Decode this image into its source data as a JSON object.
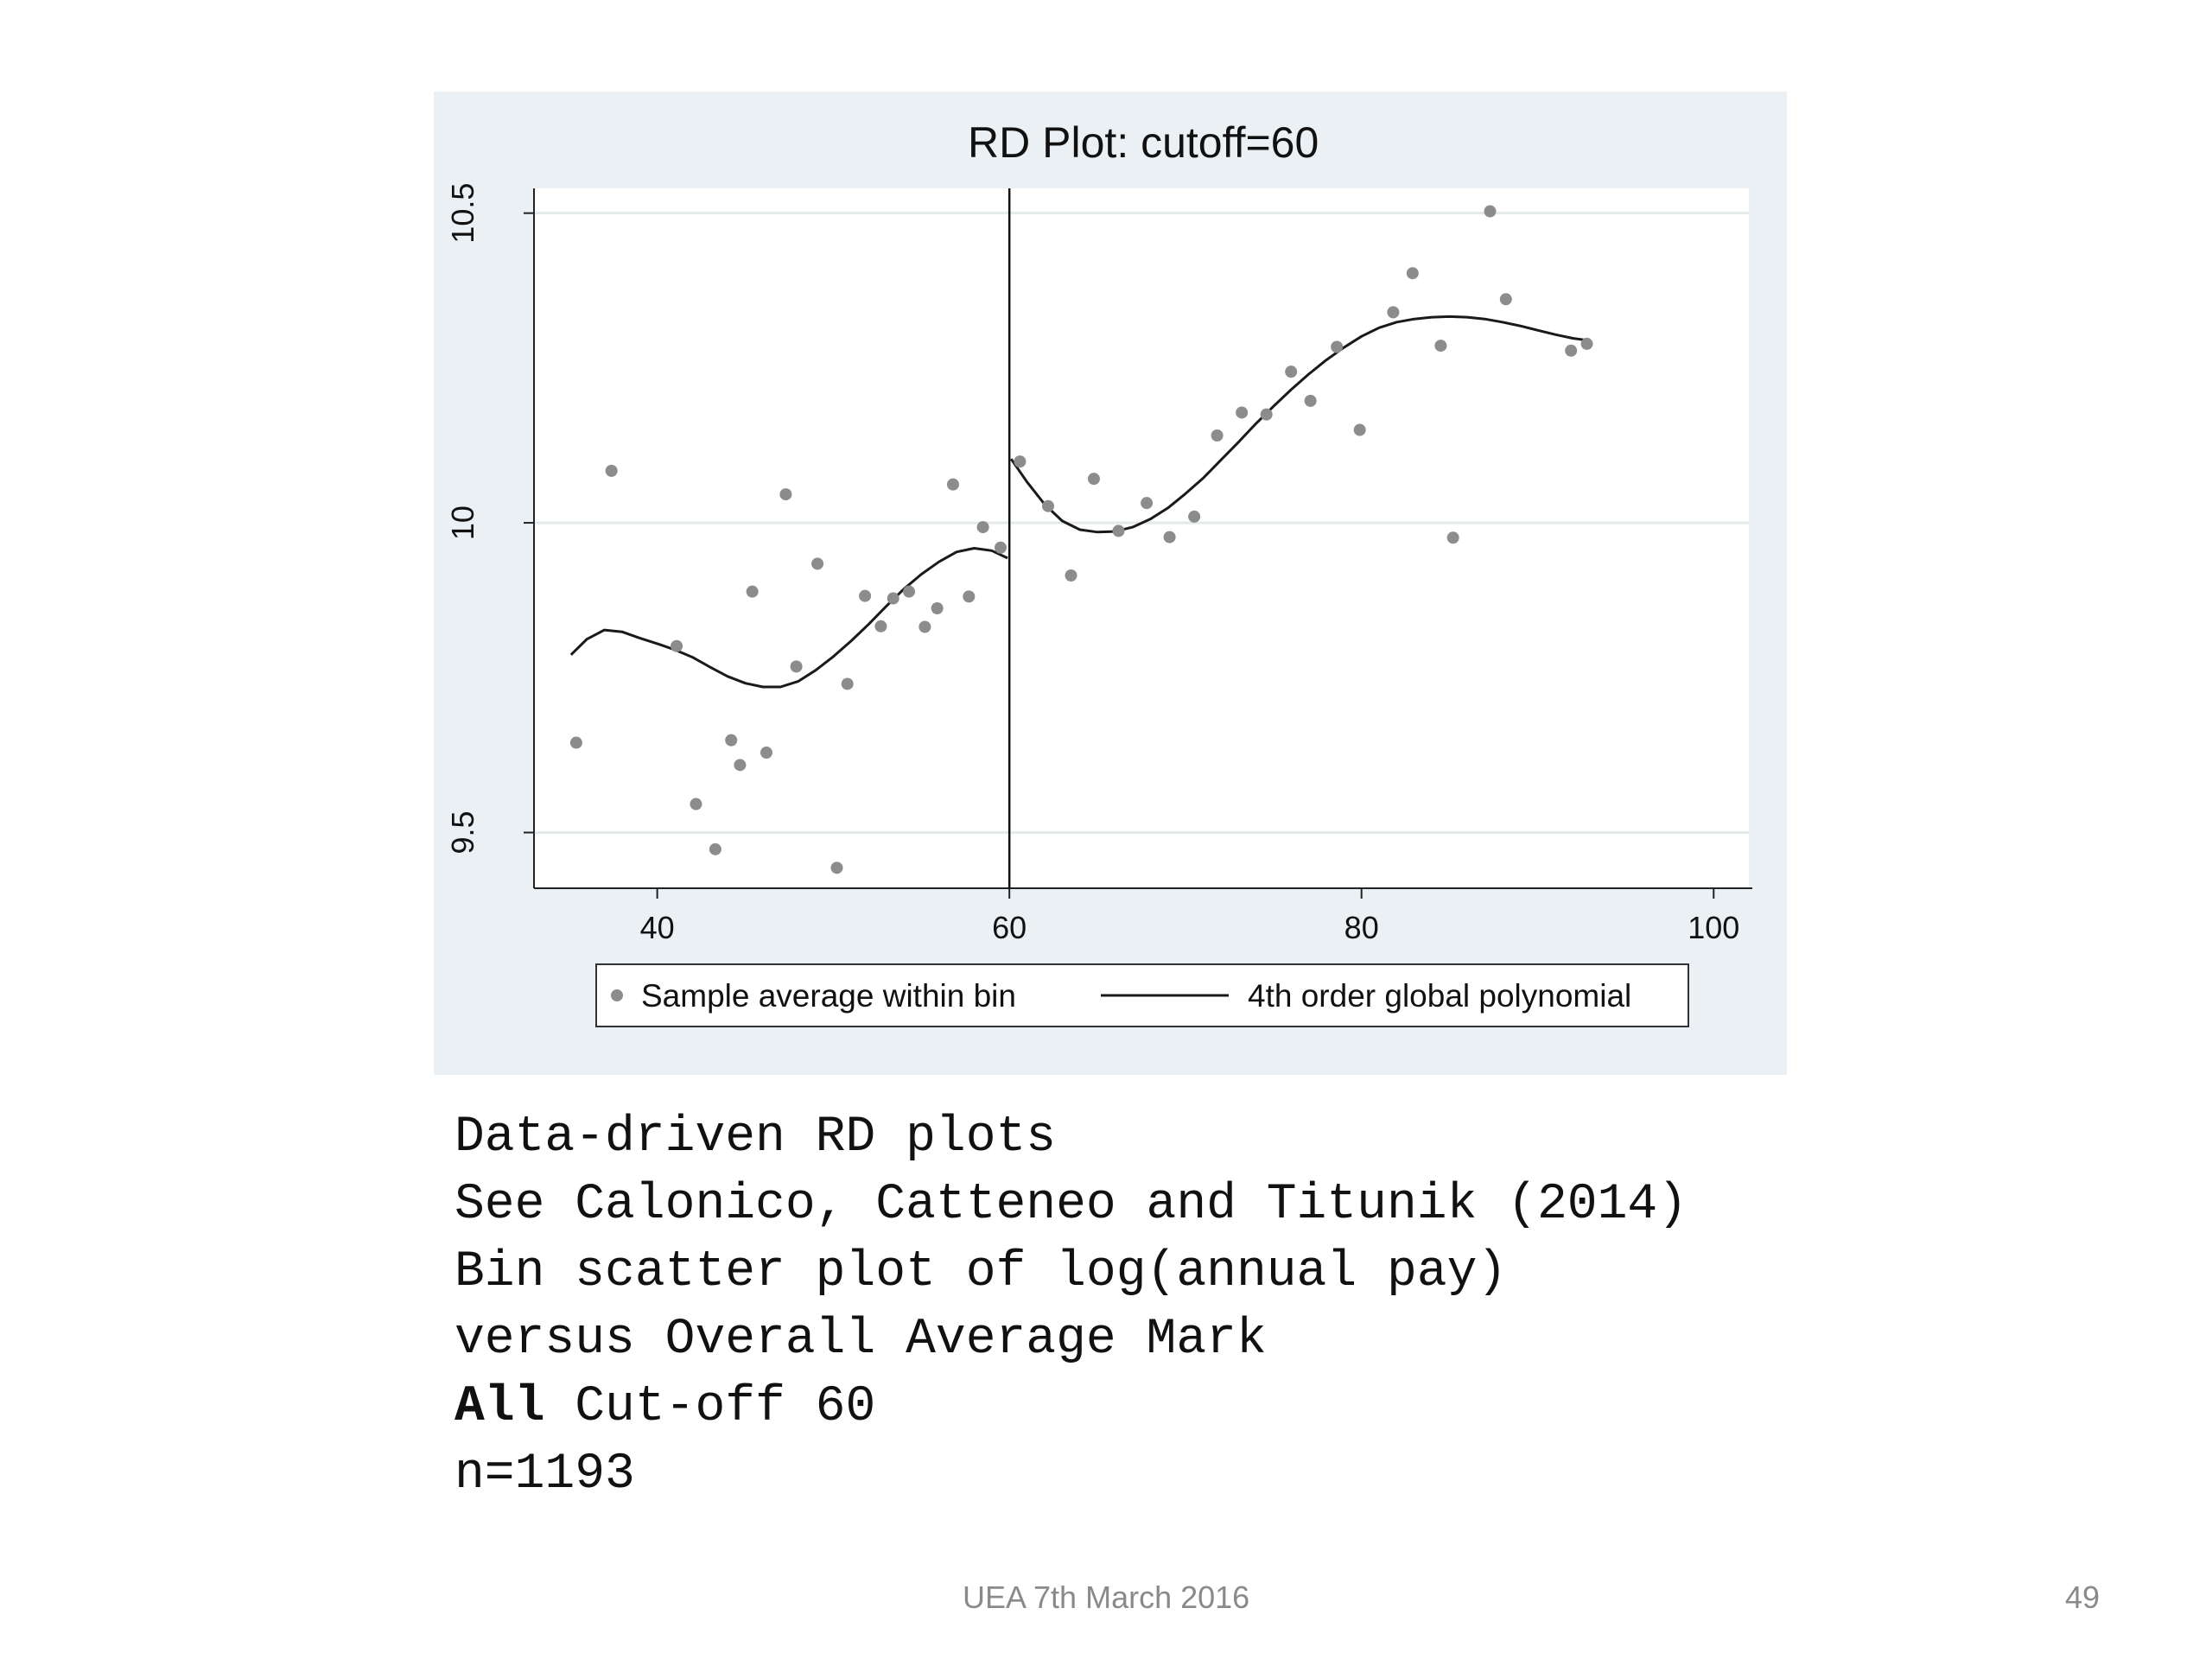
{
  "chart_data": {
    "type": "scatter",
    "title": "RD Plot: cutoff=60",
    "xlabel": "",
    "ylabel": "",
    "xlim": [
      33,
      102
    ],
    "ylim": [
      9.41,
      10.54
    ],
    "x_ticks": [
      40,
      60,
      80,
      100
    ],
    "y_ticks": [
      9.5,
      10,
      10.5
    ],
    "x_tick_labels": [
      "40",
      "60",
      "80",
      "100"
    ],
    "y_tick_labels": [
      "9.5",
      "10",
      "10.5"
    ],
    "grid": true,
    "cutoff": 60,
    "legend_position": "bottom",
    "legend": [
      "Sample average within bin",
      "4th order global polynomial"
    ],
    "colors": {
      "points": "#8c8c8c",
      "line": "#1a1a1a",
      "panel": "#eaf0f3",
      "plot": "#ffffff",
      "grid": "#e4e9ec"
    },
    "series": [
      {
        "name": "Sample average within bin",
        "kind": "points",
        "points": [
          [
            35.4,
            9.645
          ],
          [
            37.4,
            10.084
          ],
          [
            41.1,
            9.801
          ],
          [
            42.2,
            9.546
          ],
          [
            43.3,
            9.473
          ],
          [
            44.2,
            9.649
          ],
          [
            44.7,
            9.609
          ],
          [
            45.4,
            9.889
          ],
          [
            46.2,
            9.629
          ],
          [
            47.3,
            10.046
          ],
          [
            47.9,
            9.768
          ],
          [
            49.1,
            9.934
          ],
          [
            50.2,
            9.443
          ],
          [
            50.8,
            9.74
          ],
          [
            51.8,
            9.882
          ],
          [
            52.7,
            9.833
          ],
          [
            53.4,
            9.878
          ],
          [
            54.3,
            9.889
          ],
          [
            55.2,
            9.832
          ],
          [
            55.9,
            9.862
          ],
          [
            56.8,
            10.062
          ],
          [
            57.7,
            9.881
          ],
          [
            58.5,
            9.993
          ],
          [
            59.5,
            9.96
          ],
          [
            60.6,
            10.099
          ],
          [
            62.2,
            10.027
          ],
          [
            63.5,
            9.915
          ],
          [
            64.8,
            10.071
          ],
          [
            66.2,
            9.987
          ],
          [
            67.8,
            10.032
          ],
          [
            69.1,
            9.977
          ],
          [
            70.5,
            10.01
          ],
          [
            71.8,
            10.141
          ],
          [
            73.2,
            10.178
          ],
          [
            74.6,
            10.175
          ],
          [
            76.0,
            10.244
          ],
          [
            77.1,
            10.197
          ],
          [
            78.6,
            10.284
          ],
          [
            79.9,
            10.15
          ],
          [
            81.8,
            10.34
          ],
          [
            82.9,
            10.403
          ],
          [
            84.5,
            10.286
          ],
          [
            85.2,
            9.976
          ],
          [
            87.3,
            10.503
          ],
          [
            88.2,
            10.361
          ],
          [
            91.9,
            10.278
          ],
          [
            92.8,
            10.289
          ]
        ]
      },
      {
        "name": "4th order global polynomial",
        "kind": "line",
        "segments": [
          [
            [
              35.1,
              9.787
            ],
            [
              36.0,
              9.812
            ],
            [
              37.0,
              9.827
            ],
            [
              38.0,
              9.824
            ],
            [
              39.0,
              9.814
            ],
            [
              40.0,
              9.805
            ],
            [
              41.0,
              9.795
            ],
            [
              42.0,
              9.783
            ],
            [
              43.0,
              9.767
            ],
            [
              44.0,
              9.752
            ],
            [
              45.0,
              9.741
            ],
            [
              46.0,
              9.735
            ],
            [
              47.0,
              9.735
            ],
            [
              48.0,
              9.744
            ],
            [
              49.0,
              9.762
            ],
            [
              50.0,
              9.784
            ],
            [
              51.0,
              9.809
            ],
            [
              52.0,
              9.836
            ],
            [
              53.0,
              9.865
            ],
            [
              54.0,
              9.893
            ],
            [
              55.0,
              9.917
            ],
            [
              56.0,
              9.937
            ],
            [
              57.0,
              9.953
            ],
            [
              58.0,
              9.959
            ],
            [
              59.0,
              9.955
            ],
            [
              59.9,
              9.943
            ]
          ],
          [
            [
              60.1,
              10.103
            ],
            [
              61.0,
              10.066
            ],
            [
              62.0,
              10.03
            ],
            [
              63.0,
              10.003
            ],
            [
              64.0,
              9.989
            ],
            [
              65.0,
              9.985
            ],
            [
              66.0,
              9.986
            ],
            [
              67.0,
              9.993
            ],
            [
              68.0,
              10.006
            ],
            [
              69.0,
              10.024
            ],
            [
              70.0,
              10.047
            ],
            [
              71.0,
              10.072
            ],
            [
              72.0,
              10.101
            ],
            [
              73.0,
              10.13
            ],
            [
              74.0,
              10.16
            ],
            [
              75.0,
              10.188
            ],
            [
              76.0,
              10.215
            ],
            [
              77.0,
              10.24
            ],
            [
              78.0,
              10.263
            ],
            [
              79.0,
              10.283
            ],
            [
              80.0,
              10.301
            ],
            [
              81.0,
              10.315
            ],
            [
              82.0,
              10.324
            ],
            [
              83.0,
              10.329
            ],
            [
              84.0,
              10.332
            ],
            [
              85.0,
              10.333
            ],
            [
              86.0,
              10.332
            ],
            [
              87.0,
              10.329
            ],
            [
              88.0,
              10.324
            ],
            [
              89.0,
              10.318
            ],
            [
              90.0,
              10.311
            ],
            [
              91.0,
              10.304
            ],
            [
              92.0,
              10.298
            ],
            [
              93.0,
              10.294
            ]
          ]
        ]
      }
    ]
  },
  "caption": {
    "line1": "Data-driven RD plots",
    "line2": "See Calonico, Catteneo and Titunik (2014)",
    "line3": "Bin scatter plot of log(annual pay)",
    "line4": "versus Overall Average Mark",
    "line5_bold": "All",
    "line5_rest": " Cut-off 60",
    "line6": "n=1193"
  },
  "footer": {
    "date": "UEA 7th March 2016",
    "page": "49"
  }
}
